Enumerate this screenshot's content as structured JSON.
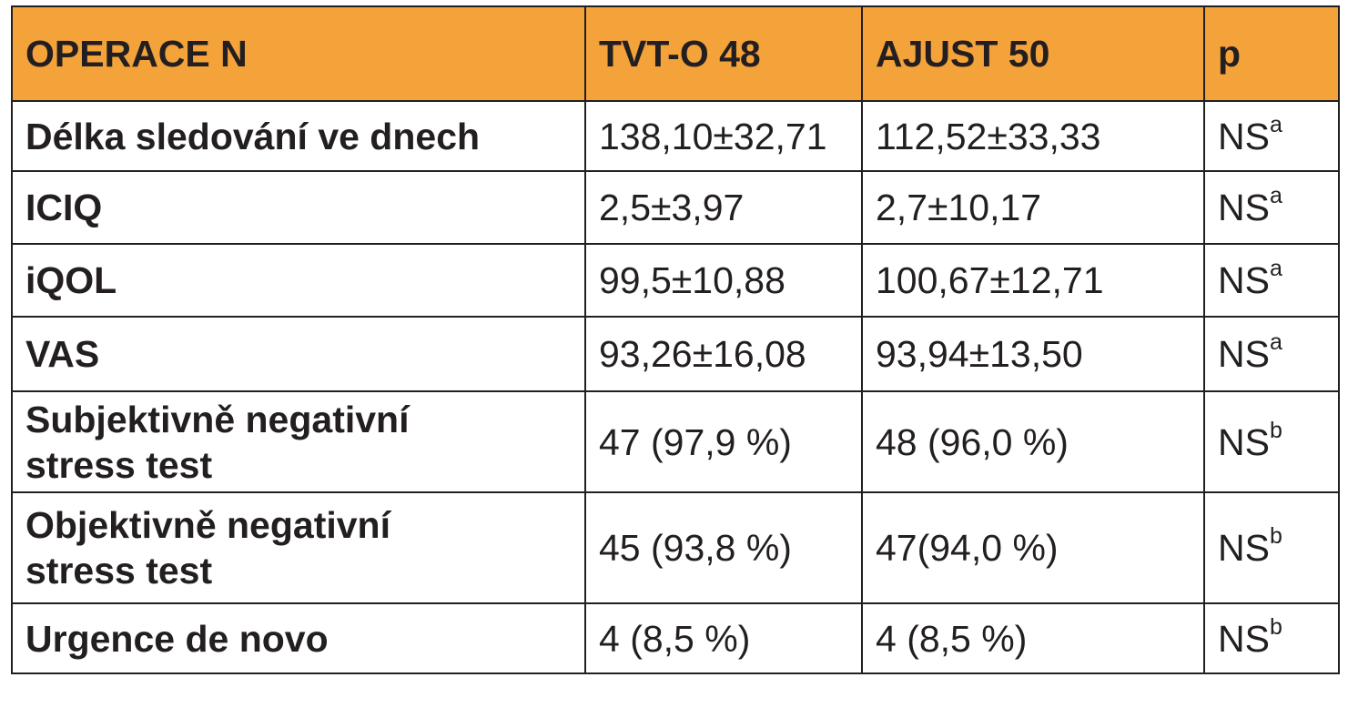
{
  "table": {
    "headers": [
      "OPERACE N",
      "TVT-O 48",
      "AJUST 50",
      "p"
    ],
    "rows": [
      {
        "label": "Délka sledování ve dnech",
        "tvto": "138,10±32,71",
        "ajust": "112,52±33,33",
        "p": "NS",
        "note": "a"
      },
      {
        "label": "ICIQ",
        "tvto": "2,5±3,97",
        "ajust": "2,7±10,17",
        "p": "NS",
        "note": "a"
      },
      {
        "label": "iQOL",
        "tvto": "99,5±10,88",
        "ajust": "100,67±12,71",
        "p": "NS",
        "note": "a"
      },
      {
        "label": "VAS",
        "tvto": "93,26±16,08",
        "ajust": "93,94±13,50",
        "p": "NS",
        "note": "a"
      },
      {
        "label_lines": [
          "Subjektivně negativní",
          "stress test"
        ],
        "tvto": "47 (97,9 %)",
        "ajust": "48 (96,0 %)",
        "p": "NS",
        "note": "b"
      },
      {
        "label_lines": [
          "Objektivně negativní",
          "stress test"
        ],
        "tvto": "45 (93,8 %)",
        "ajust": "47(94,0 %)",
        "p": "NS",
        "note": "b"
      },
      {
        "label": "Urgence de novo",
        "tvto": "4 (8,5 %)",
        "ajust": "4 (8,5 %)",
        "p": "NS",
        "note": "b"
      }
    ]
  },
  "colors": {
    "header_bg": "#f4a23a",
    "border": "#231f20",
    "text": "#231f20"
  }
}
